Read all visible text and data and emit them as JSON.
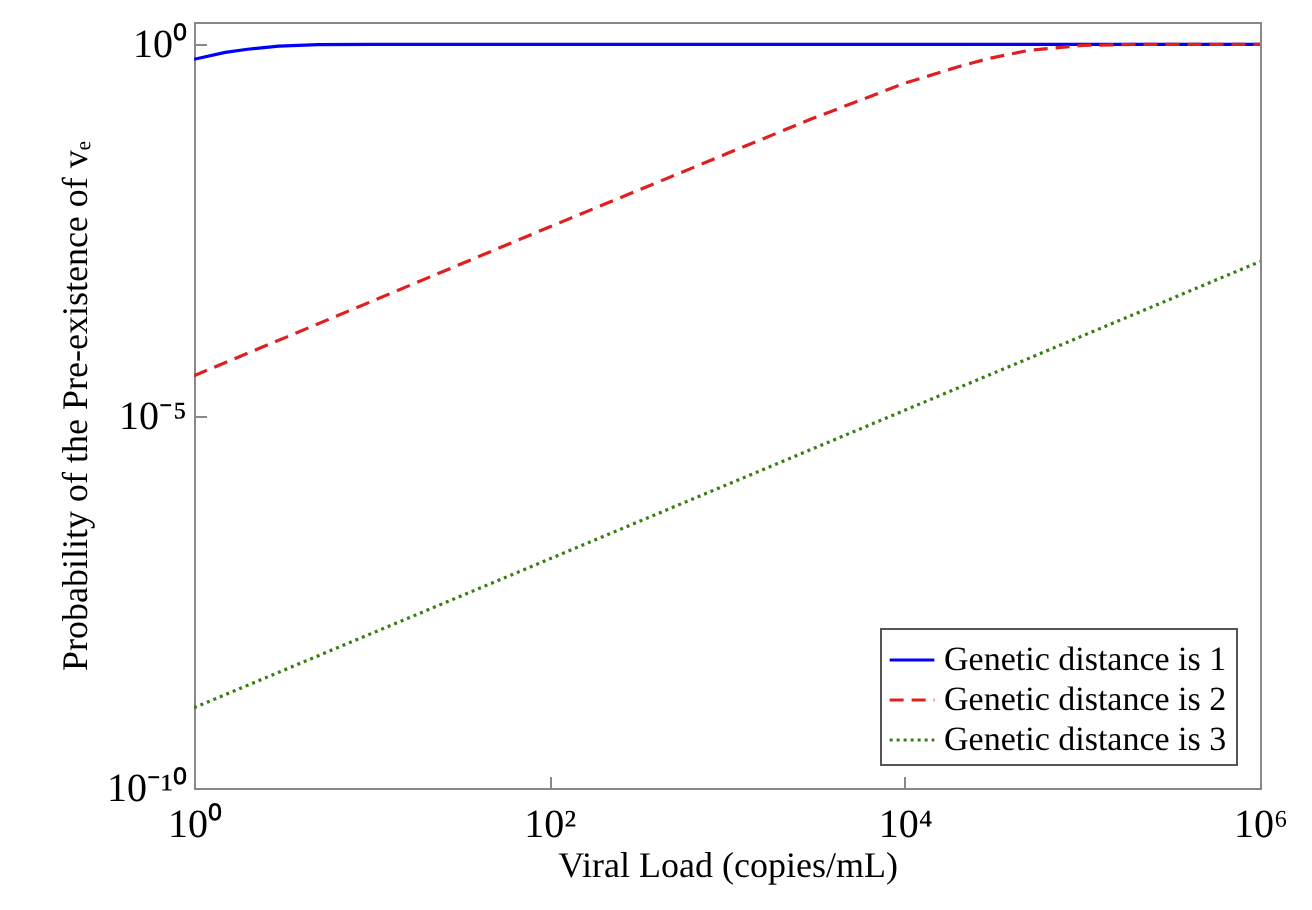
{
  "chart_data": {
    "type": "line",
    "xlabel": "Viral Load (copies/mL)",
    "ylabel": "Probability of the Pre-existence of vₑ",
    "log": "xy",
    "xlim": [
      1,
      1000000
    ],
    "xticks": [
      {
        "value": 1,
        "label": "10⁰"
      },
      {
        "value": 100,
        "label": "10²"
      },
      {
        "value": 10000,
        "label": "10⁴"
      },
      {
        "value": 1000000,
        "label": "10⁶"
      }
    ],
    "ylim": [
      1e-10,
      2
    ],
    "yticks": [
      {
        "value": 1e-10,
        "label": "10⁻¹⁰"
      },
      {
        "value": 1e-05,
        "label": "10⁻⁵"
      },
      {
        "value": 1,
        "label": "10⁰"
      }
    ],
    "grid": false,
    "legend": "bottom right",
    "series": [
      {
        "name": "Genetic distance is 1",
        "color": "#0000ff",
        "line_style": "solid",
        "x": [
          1,
          1.5,
          2,
          3,
          5,
          10,
          100,
          1000000
        ],
        "values": [
          0.63,
          0.78,
          0.86,
          0.95,
          0.99,
          1,
          1,
          1
        ]
      },
      {
        "name": "Genetic distance is 2",
        "color": "#e02020",
        "line_style": "dashed",
        "x": [
          1,
          10,
          100,
          1000,
          3000,
          10000,
          20000,
          30000,
          50000,
          100000,
          200000,
          1000000
        ],
        "values": [
          3.5e-05,
          0.00035,
          0.0035,
          0.034,
          0.1,
          0.3,
          0.5,
          0.65,
          0.83,
          0.97,
          1,
          1
        ]
      },
      {
        "name": "Genetic distance is 3",
        "color": "#3a7d10",
        "line_style": "dotted",
        "x": [
          1,
          100,
          10000,
          1000000
        ],
        "values": [
          1.2e-09,
          1.2e-07,
          1.2e-05,
          0.0012
        ]
      }
    ]
  }
}
